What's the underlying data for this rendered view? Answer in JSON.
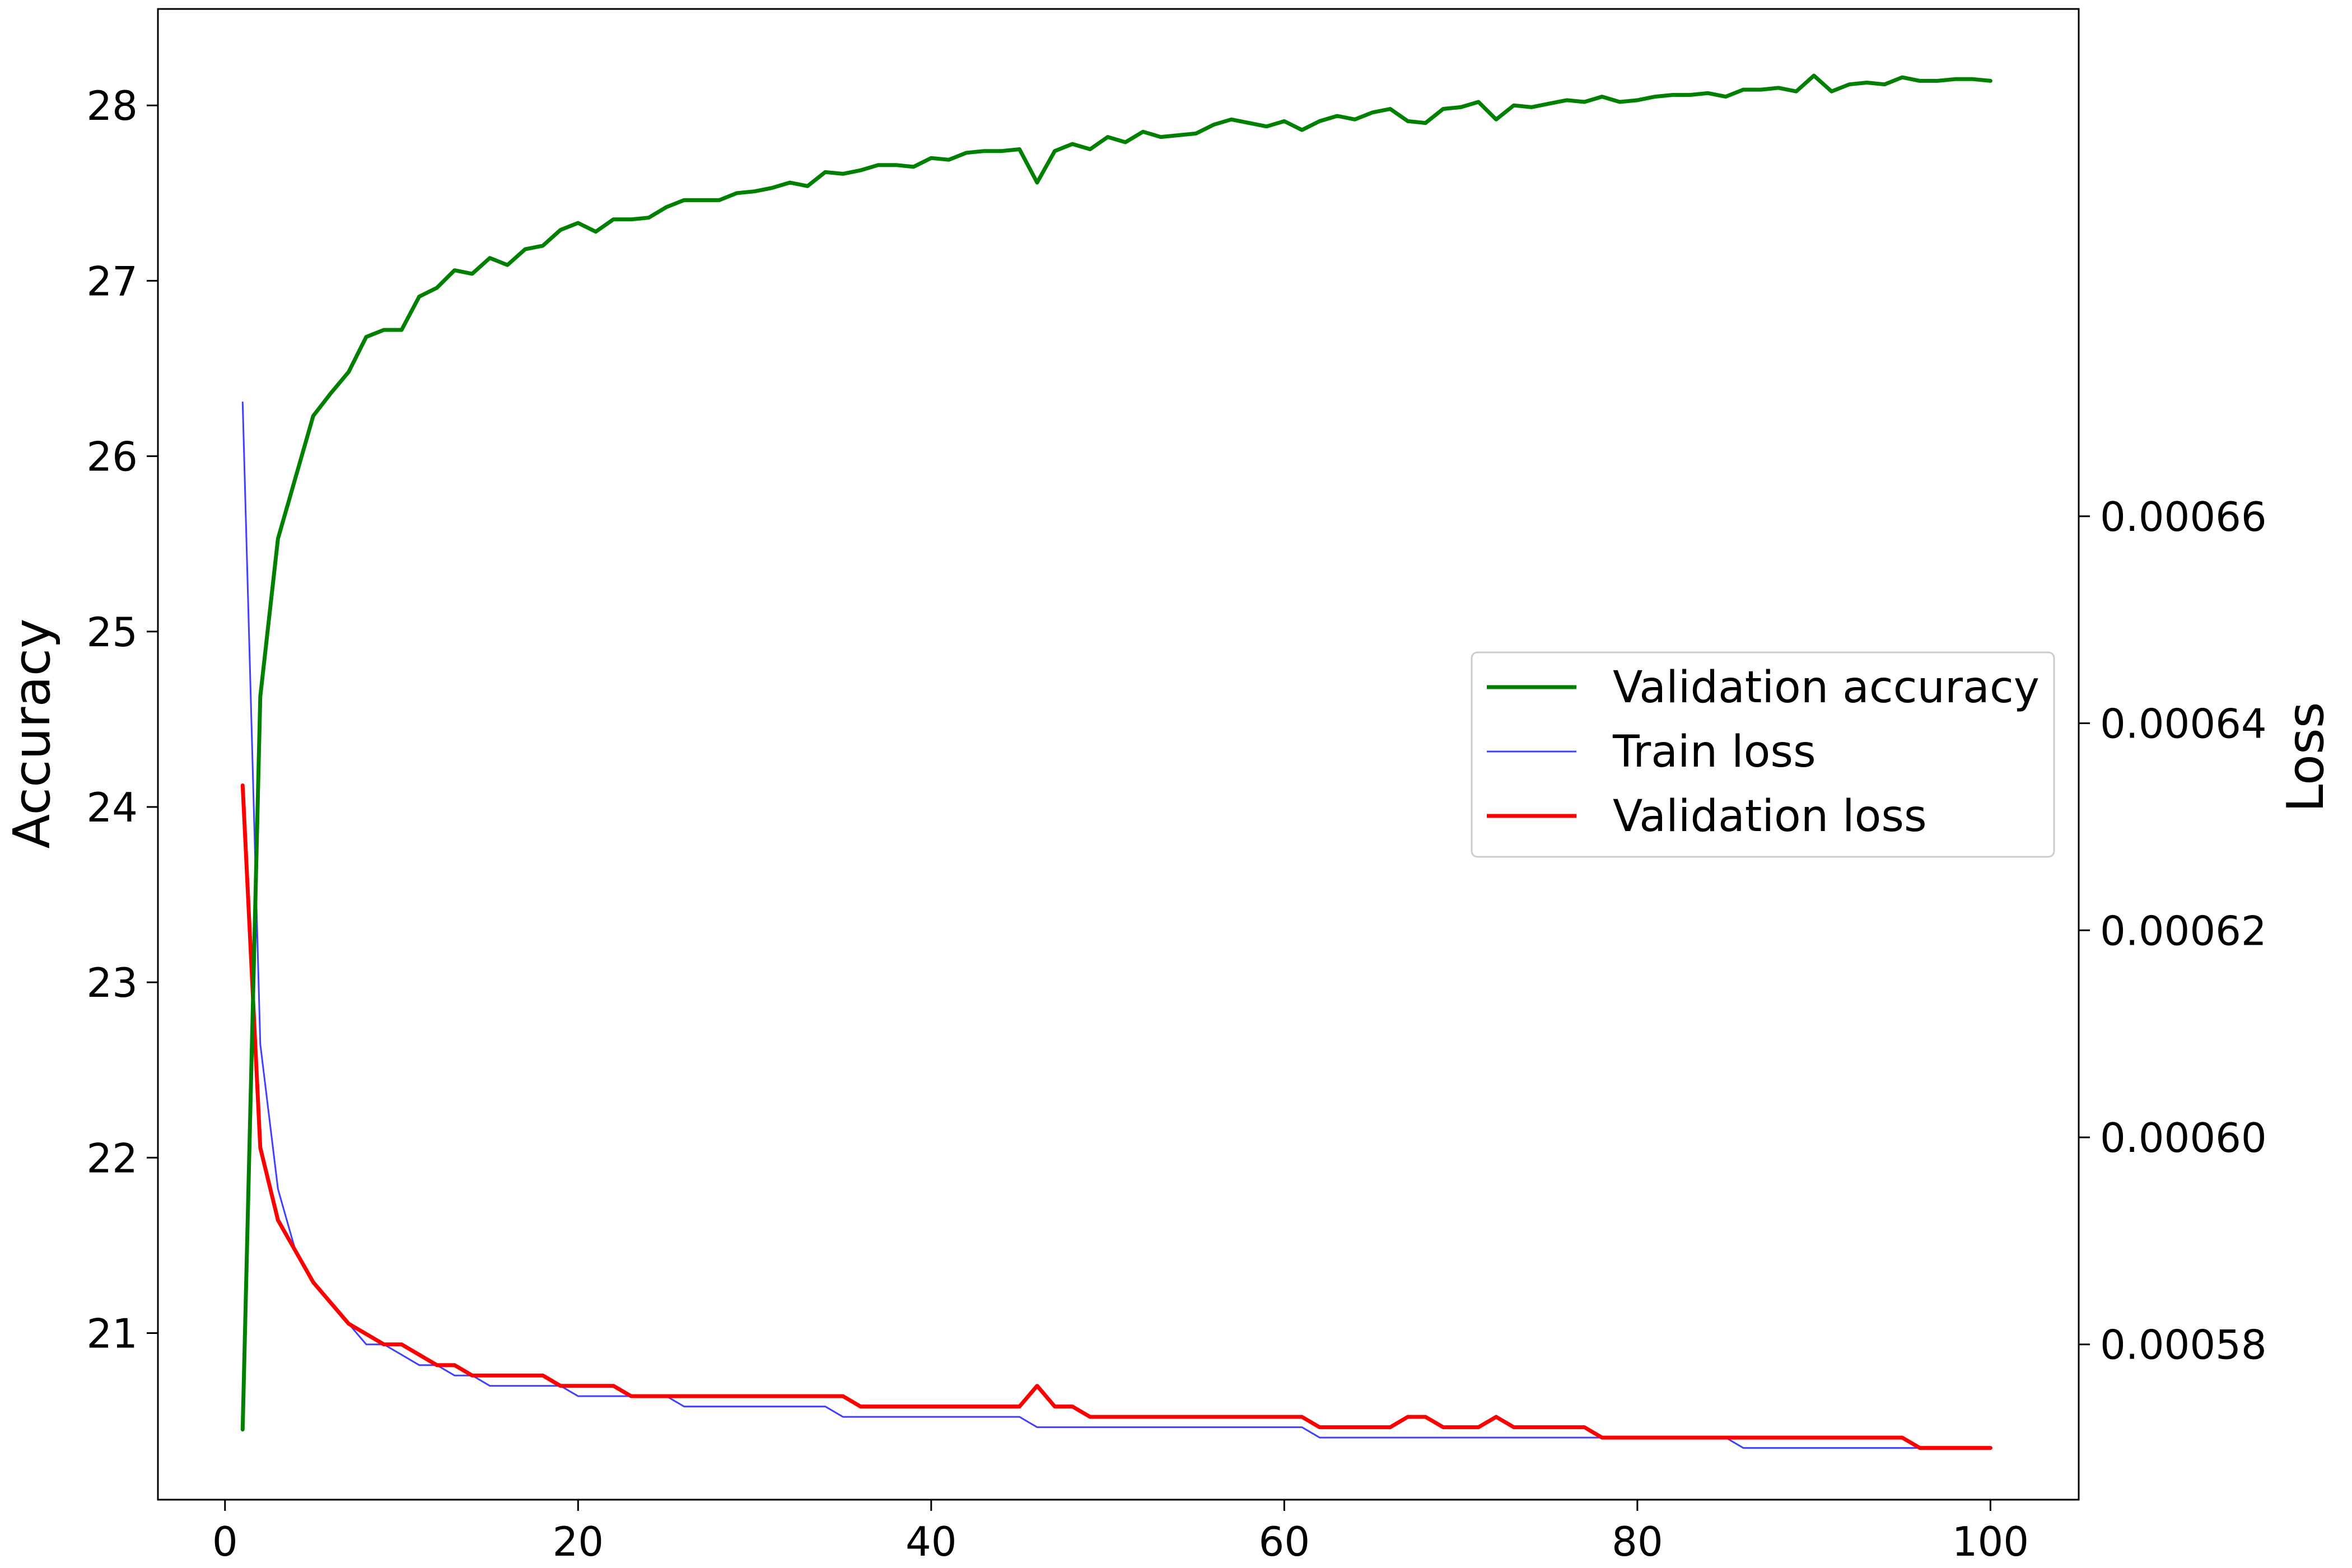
{
  "chart_data": {
    "type": "line",
    "title": "",
    "xlabel": "",
    "ylabel_left": "Accuracy",
    "ylabel_right": "Loss",
    "xlim": [
      -3.8,
      105
    ],
    "ylim_left": [
      20.05,
      28.55
    ],
    "ylim_right": [
      0.000565,
      0.000709
    ],
    "x_ticks": [
      0,
      20,
      40,
      60,
      80,
      100
    ],
    "x_tick_labels": [
      "0",
      "20",
      "40",
      "60",
      "80",
      "100"
    ],
    "y_left_ticks": [
      21,
      22,
      23,
      24,
      25,
      26,
      27,
      28
    ],
    "y_left_tick_labels": [
      "21",
      "22",
      "23",
      "24",
      "25",
      "26",
      "27",
      "28"
    ],
    "y_right_ticks": [
      0.00058,
      0.0006,
      0.00062,
      0.00064,
      0.00066
    ],
    "y_right_tick_labels": [
      "0.00058",
      "0.00060",
      "0.00062",
      "0.00064",
      "0.00066"
    ],
    "grid": false,
    "legend_position": "center-right",
    "legend": [
      "Validation accuracy",
      "Train loss",
      "Validation loss"
    ],
    "x": [
      1,
      2,
      3,
      4,
      5,
      6,
      7,
      8,
      9,
      10,
      11,
      12,
      13,
      14,
      15,
      16,
      17,
      18,
      19,
      20,
      21,
      22,
      23,
      24,
      25,
      26,
      27,
      28,
      29,
      30,
      31,
      32,
      33,
      34,
      35,
      36,
      37,
      38,
      39,
      40,
      41,
      42,
      43,
      44,
      45,
      46,
      47,
      48,
      49,
      50,
      51,
      52,
      53,
      54,
      55,
      56,
      57,
      58,
      59,
      60,
      61,
      62,
      63,
      64,
      65,
      66,
      67,
      68,
      69,
      70,
      71,
      72,
      73,
      74,
      75,
      76,
      77,
      78,
      79,
      80,
      81,
      82,
      83,
      84,
      85,
      86,
      87,
      88,
      89,
      90,
      91,
      92,
      93,
      94,
      95,
      96,
      97,
      98,
      99,
      100
    ],
    "series": [
      {
        "name": "Validation accuracy",
        "axis": "left",
        "color": "#008000",
        "values": [
          20.45,
          24.63,
          25.53,
          25.88,
          26.23,
          26.36,
          26.48,
          26.68,
          26.72,
          26.72,
          26.91,
          26.96,
          27.06,
          27.04,
          27.13,
          27.09,
          27.18,
          27.2,
          27.29,
          27.33,
          27.28,
          27.35,
          27.35,
          27.36,
          27.42,
          27.46,
          27.46,
          27.46,
          27.5,
          27.51,
          27.53,
          27.56,
          27.54,
          27.62,
          27.61,
          27.63,
          27.66,
          27.66,
          27.65,
          27.7,
          27.69,
          27.73,
          27.74,
          27.74,
          27.75,
          27.56,
          27.74,
          27.78,
          27.75,
          27.82,
          27.79,
          27.85,
          27.82,
          27.83,
          27.84,
          27.89,
          27.92,
          27.9,
          27.88,
          27.91,
          27.86,
          27.91,
          27.94,
          27.92,
          27.96,
          27.98,
          27.91,
          27.9,
          27.98,
          27.99,
          28.02,
          27.92,
          28.0,
          27.99,
          28.01,
          28.03,
          28.02,
          28.05,
          28.02,
          28.03,
          28.05,
          28.06,
          28.06,
          28.07,
          28.05,
          28.09,
          28.09,
          28.1,
          28.08,
          28.17,
          28.08,
          28.12,
          28.13,
          28.12,
          28.16,
          28.14,
          28.14,
          28.15,
          28.15,
          28.14
        ]
      },
      {
        "name": "Train loss",
        "axis": "right",
        "color": "#0000ff",
        "values": [
          0.000671,
          0.000609,
          0.000595,
          0.000589,
          0.000586,
          0.000584,
          0.000582,
          0.00058,
          0.00058,
          0.000579,
          0.000578,
          0.000578,
          0.000577,
          0.000577,
          0.000576,
          0.000576,
          0.000576,
          0.000576,
          0.000576,
          0.000575,
          0.000575,
          0.000575,
          0.000575,
          0.000575,
          0.000575,
          0.000574,
          0.000574,
          0.000574,
          0.000574,
          0.000574,
          0.000574,
          0.000574,
          0.000574,
          0.000574,
          0.000573,
          0.000573,
          0.000573,
          0.000573,
          0.000573,
          0.000573,
          0.000573,
          0.000573,
          0.000573,
          0.000573,
          0.000573,
          0.000572,
          0.000572,
          0.000572,
          0.000572,
          0.000572,
          0.000572,
          0.000572,
          0.000572,
          0.000572,
          0.000572,
          0.000572,
          0.000572,
          0.000572,
          0.000572,
          0.000572,
          0.000572,
          0.000571,
          0.000571,
          0.000571,
          0.000571,
          0.000571,
          0.000571,
          0.000571,
          0.000571,
          0.000571,
          0.000571,
          0.000571,
          0.000571,
          0.000571,
          0.000571,
          0.000571,
          0.000571,
          0.000571,
          0.000571,
          0.000571,
          0.000571,
          0.000571,
          0.000571,
          0.000571,
          0.000571,
          0.00057,
          0.00057,
          0.00057,
          0.00057,
          0.00057,
          0.00057,
          0.00057,
          0.00057,
          0.00057,
          0.00057,
          0.00057,
          0.00057,
          0.00057,
          0.00057,
          0.00057
        ]
      },
      {
        "name": "Validation loss",
        "axis": "right",
        "color": "#ff0000",
        "values": [
          0.000634,
          0.000599,
          0.000592,
          0.000589,
          0.000586,
          0.000584,
          0.000582,
          0.000581,
          0.00058,
          0.00058,
          0.000579,
          0.000578,
          0.000578,
          0.000577,
          0.000577,
          0.000577,
          0.000577,
          0.000577,
          0.000576,
          0.000576,
          0.000576,
          0.000576,
          0.000575,
          0.000575,
          0.000575,
          0.000575,
          0.000575,
          0.000575,
          0.000575,
          0.000575,
          0.000575,
          0.000575,
          0.000575,
          0.000575,
          0.000575,
          0.000574,
          0.000574,
          0.000574,
          0.000574,
          0.000574,
          0.000574,
          0.000574,
          0.000574,
          0.000574,
          0.000574,
          0.000576,
          0.000574,
          0.000574,
          0.000573,
          0.000573,
          0.000573,
          0.000573,
          0.000573,
          0.000573,
          0.000573,
          0.000573,
          0.000573,
          0.000573,
          0.000573,
          0.000573,
          0.000573,
          0.000572,
          0.000572,
          0.000572,
          0.000572,
          0.000572,
          0.000573,
          0.000573,
          0.000572,
          0.000572,
          0.000572,
          0.000573,
          0.000572,
          0.000572,
          0.000572,
          0.000572,
          0.000572,
          0.000571,
          0.000571,
          0.000571,
          0.000571,
          0.000571,
          0.000571,
          0.000571,
          0.000571,
          0.000571,
          0.000571,
          0.000571,
          0.000571,
          0.000571,
          0.000571,
          0.000571,
          0.000571,
          0.000571,
          0.000571,
          0.00057,
          0.00057,
          0.00057,
          0.00057,
          0.00057
        ]
      }
    ]
  }
}
